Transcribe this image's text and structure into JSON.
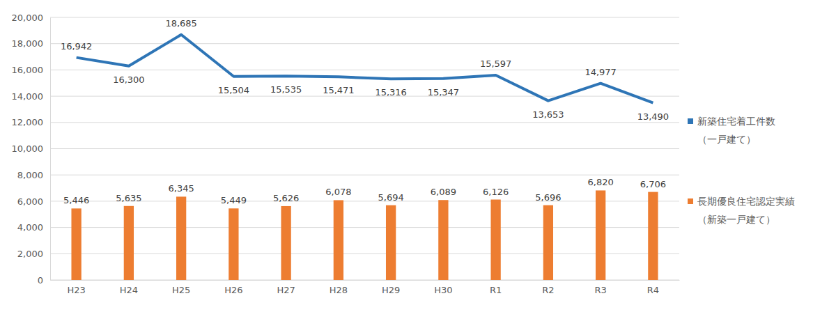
{
  "chart_data": {
    "type": "line_bar",
    "categories": [
      "H23",
      "H24",
      "H25",
      "H26",
      "H27",
      "H28",
      "H29",
      "H30",
      "R1",
      "R2",
      "R3",
      "R4"
    ],
    "series": [
      {
        "name": "新築住宅着工件数（一戸建て）",
        "type": "line",
        "color": "#2e75b6",
        "values": [
          16942,
          16300,
          18685,
          15504,
          15535,
          15471,
          15316,
          15347,
          15597,
          13653,
          14977,
          13490
        ],
        "value_labels": [
          "16,942",
          "16,300",
          "18,685",
          "15,504",
          "15,535",
          "15,471",
          "15,316",
          "15,347",
          "15,597",
          "13,653",
          "14,977",
          "13,490"
        ]
      },
      {
        "name": "長期優良住宅認定実績（新築一戸建て）",
        "type": "bar",
        "color": "#ed7d31",
        "values": [
          5446,
          5635,
          6345,
          5449,
          5626,
          6078,
          5694,
          6089,
          6126,
          5696,
          6820,
          6706
        ],
        "value_labels": [
          "5,446",
          "5,635",
          "6,345",
          "5,449",
          "5,626",
          "6,078",
          "5,694",
          "6,089",
          "6,126",
          "5,696",
          "6,820",
          "6,706"
        ]
      }
    ],
    "ylim": [
      0,
      20000
    ],
    "yticks": [
      0,
      {
        "value": 2000,
        "label": "2,000"
      },
      {
        "value": 4000,
        "label": "4,000"
      },
      {
        "value": 6000,
        "label": "6,000"
      },
      {
        "value": 8000,
        "label": "8,000"
      },
      {
        "value": 10000,
        "label": "10,000"
      },
      {
        "value": 12000,
        "label": "12,000"
      },
      {
        "value": 14000,
        "label": "14,000"
      },
      {
        "value": 16000,
        "label": "16,000"
      },
      {
        "value": 18000,
        "label": "18,000"
      },
      {
        "value": 20000,
        "label": "20,000"
      }
    ],
    "grid": true,
    "legend": "right",
    "data_labels": true
  }
}
